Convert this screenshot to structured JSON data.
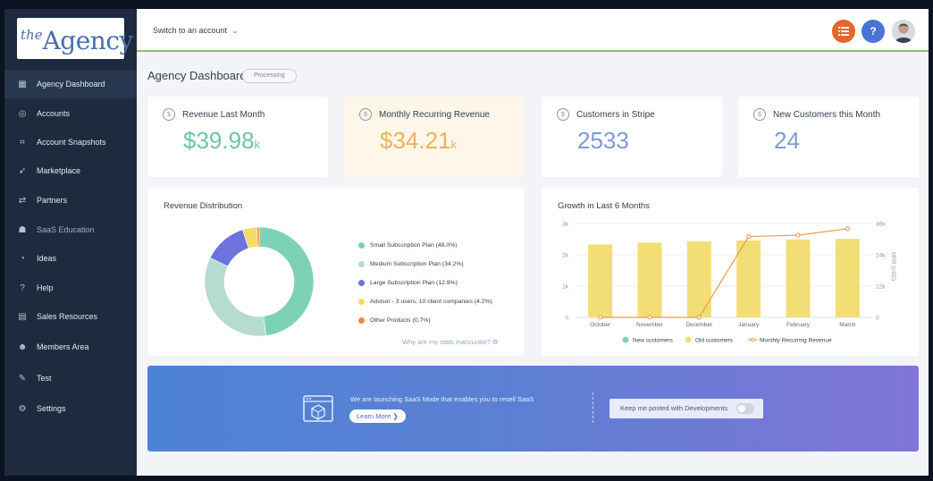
{
  "brand": {
    "logo_the": "the",
    "logo_agency": "Agency"
  },
  "sidebar": {
    "items": [
      {
        "label": "Agency Dashboard",
        "icon": "dashboard-icon",
        "glyph": "▦"
      },
      {
        "label": "Accounts",
        "icon": "location-pin-icon",
        "glyph": "◎"
      },
      {
        "label": "Account Snapshots",
        "icon": "snapshot-icon",
        "glyph": "⌗"
      },
      {
        "label": "Marketplace",
        "icon": "rocket-icon",
        "glyph": "➶"
      },
      {
        "label": "Partners",
        "icon": "handshake-icon",
        "glyph": "⇄"
      },
      {
        "label": "SaaS Education",
        "icon": "education-icon",
        "glyph": "☗"
      },
      {
        "label": "Ideas",
        "icon": "ideas-icon",
        "glyph": "◔"
      },
      {
        "label": "Help",
        "icon": "question-icon",
        "glyph": "?"
      },
      {
        "label": "Sales Resources",
        "icon": "document-icon",
        "glyph": "▤"
      },
      {
        "label": "Members Area",
        "icon": "members-icon",
        "glyph": "☻"
      },
      {
        "label": "Test",
        "icon": "wrench-icon",
        "glyph": "✎"
      },
      {
        "label": "Settings",
        "icon": "gear-icon",
        "glyph": "⚙"
      }
    ]
  },
  "topbar": {
    "switch_account": "Switch to an account",
    "help": "?"
  },
  "dashboard": {
    "title": "Agency Dashboard",
    "status": "Processing"
  },
  "stats": [
    {
      "label": "Revenue Last Month",
      "value": "$39.98",
      "unit": "k",
      "color": "#6cc79a"
    },
    {
      "label": "Monthly Recurring Revenue",
      "value": "$34.21",
      "unit": "k",
      "color": "#efb158"
    },
    {
      "label": "Customers in Stripe",
      "value": "2533",
      "unit": "",
      "color": "#7b9ad8"
    },
    {
      "label": "New Customers this Month",
      "value": "24",
      "unit": "",
      "color": "#7b9ad8"
    }
  ],
  "revenue_distribution": {
    "title": "Revenue Distribution",
    "legend": [
      "Small Subscription Plan (48.0%)",
      "Medium Subscription Plan (34.2%)",
      "Large Subscription Plan (12.9%)",
      "Advisor - 3 users, 10 client companies (4.2%)",
      "Other Products (0.7%)"
    ],
    "stats_link": "Why are my stats inaccurate?"
  },
  "growth": {
    "title": "Growth in Last 6 Months"
  },
  "chart_data": [
    {
      "type": "pie",
      "title": "Revenue Distribution",
      "labels": [
        "Small Subscription Plan",
        "Medium Subscription Plan",
        "Large Subscription Plan",
        "Advisor - 3 users, 10 client companies",
        "Other Products"
      ],
      "values": [
        48.0,
        34.2,
        12.9,
        4.2,
        0.7
      ],
      "colors": [
        "#7dd2b4",
        "#b6dbd1",
        "#6d72de",
        "#f2dc68",
        "#ee8a3c"
      ],
      "donut": true
    },
    {
      "type": "bar",
      "title": "Growth in Last 6 Months",
      "categories": [
        "October",
        "November",
        "December",
        "January",
        "February",
        "March"
      ],
      "series": [
        {
          "name": "New customers",
          "kind": "bar",
          "color": "#7dd2b4",
          "values": [
            0,
            0,
            0,
            0,
            0,
            0
          ]
        },
        {
          "name": "Old customers",
          "kind": "bar",
          "color": "#f2de75",
          "values": [
            2330,
            2390,
            2430,
            2460,
            2490,
            2510
          ]
        },
        {
          "name": "Monthly Recurring Revenue",
          "kind": "line",
          "axis": "right",
          "color": "#f09a45",
          "values": [
            0,
            0,
            0,
            31000,
            31500,
            34000
          ]
        }
      ],
      "ylim": [
        0,
        3000
      ],
      "y_ticks": [
        "0",
        "1k",
        "2k",
        "3k"
      ],
      "y2lim": [
        0,
        36000
      ],
      "y2_ticks": [
        "0",
        "12k",
        "24k",
        "36k"
      ],
      "y2label": "MRR (USD)",
      "legend_position": "bottom"
    }
  ],
  "banner": {
    "message": "We are launching SaaS Mode that enables you to resell SaaS",
    "learn_more": "Learn More ❯",
    "keep_posted": "Keep me posted with Developments"
  }
}
